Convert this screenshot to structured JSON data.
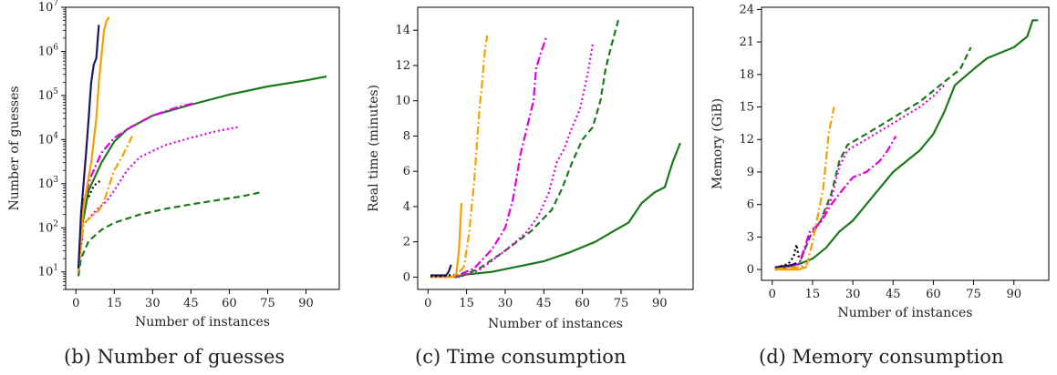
{
  "chart_data": [
    {
      "type": "line",
      "caption": "(b) Number of guesses",
      "xlabel": "Number of instances",
      "ylabel": "Number of guesses",
      "yscale": "log",
      "xlim": [
        -4,
        103
      ],
      "ylim": [
        4,
        10000000
      ],
      "xticks": [
        0,
        15,
        30,
        45,
        60,
        75,
        90
      ],
      "yticks": [
        {
          "value": 10,
          "base": "10",
          "exp": "1"
        },
        {
          "value": 100,
          "base": "10",
          "exp": "2"
        },
        {
          "value": 1000,
          "base": "10",
          "exp": "3"
        },
        {
          "value": 10000,
          "base": "10",
          "exp": "4"
        },
        {
          "value": 100000,
          "base": "10",
          "exp": "5"
        },
        {
          "value": 1000000,
          "base": "10",
          "exp": "6"
        },
        {
          "value": 10000000,
          "base": "10",
          "exp": "7"
        }
      ],
      "series": [
        {
          "color": "#1a7a1a",
          "dash": "solid",
          "points": [
            [
              1,
              10
            ],
            [
              2,
              80
            ],
            [
              5,
              700
            ],
            [
              10,
              3000
            ],
            [
              15,
              9000
            ],
            [
              20,
              17000
            ],
            [
              30,
              35000
            ],
            [
              45,
              62000
            ],
            [
              60,
              105000
            ],
            [
              75,
              160000
            ],
            [
              90,
              220000
            ],
            [
              98,
              270000
            ]
          ]
        },
        {
          "color": "#1a7a1a",
          "dash": "dashed",
          "points": [
            [
              1,
              8
            ],
            [
              2,
              20
            ],
            [
              5,
              50
            ],
            [
              10,
              90
            ],
            [
              15,
              130
            ],
            [
              25,
              200
            ],
            [
              35,
              270
            ],
            [
              45,
              340
            ],
            [
              55,
              420
            ],
            [
              65,
              520
            ],
            [
              73,
              650
            ]
          ]
        },
        {
          "color": "#e000e0",
          "dash": "dotted",
          "points": [
            [
              1,
              10
            ],
            [
              3,
              120
            ],
            [
              8,
              250
            ],
            [
              12,
              400
            ],
            [
              15,
              700
            ],
            [
              20,
              2000
            ],
            [
              25,
              4000
            ],
            [
              35,
              7500
            ],
            [
              45,
              11000
            ],
            [
              55,
              15500
            ],
            [
              64,
              19500
            ]
          ]
        },
        {
          "color": "#e000e0",
          "dash": "dashdot",
          "points": [
            [
              1,
              12
            ],
            [
              3,
              400
            ],
            [
              6,
              1500
            ],
            [
              10,
              5000
            ],
            [
              15,
              11000
            ],
            [
              22,
              20000
            ],
            [
              30,
              35000
            ],
            [
              40,
              55000
            ],
            [
              46,
              66000
            ]
          ]
        },
        {
          "color": "#f5a000",
          "dash": "dashdot",
          "points": [
            [
              1,
              12
            ],
            [
              3,
              120
            ],
            [
              6,
              180
            ],
            [
              9,
              250
            ],
            [
              11,
              400
            ],
            [
              13,
              900
            ],
            [
              15,
              2000
            ],
            [
              18,
              4000
            ],
            [
              21,
              9000
            ],
            [
              22,
              12000
            ]
          ]
        },
        {
          "color": "#f5a000",
          "dash": "solid",
          "points": [
            [
              1,
              10
            ],
            [
              3,
              300
            ],
            [
              6,
              3000
            ],
            [
              8,
              30000
            ],
            [
              9,
              200000
            ],
            [
              10,
              800000
            ],
            [
              11,
              3000000
            ],
            [
              12,
              5000000
            ],
            [
              13,
              6000000
            ]
          ]
        },
        {
          "color": "#1a1a5e",
          "dash": "solid",
          "points": [
            [
              1,
              12
            ],
            [
              2,
              200
            ],
            [
              3,
              1000
            ],
            [
              4,
              5000
            ],
            [
              5,
              30000
            ],
            [
              6,
              200000
            ],
            [
              7,
              500000
            ],
            [
              8,
              700000
            ],
            [
              9,
              4000000
            ]
          ]
        },
        {
          "color": "#000000",
          "dash": "dotted",
          "points": [
            [
              5,
              500
            ],
            [
              7,
              900
            ],
            [
              9,
              1100
            ],
            [
              10,
              1200
            ]
          ]
        }
      ]
    },
    {
      "type": "line",
      "caption": "(c) Time consumption",
      "xlabel": "Number of instances",
      "ylabel": "Real time (minutes)",
      "xlim": [
        -4,
        103
      ],
      "ylim": [
        -0.7,
        15.3
      ],
      "xticks": [
        0,
        15,
        30,
        45,
        60,
        75,
        90
      ],
      "yticks": [
        0,
        2,
        4,
        6,
        8,
        10,
        12,
        14
      ],
      "series": [
        {
          "color": "#1a7a1a",
          "dash": "solid",
          "points": [
            [
              1,
              0
            ],
            [
              10,
              0
            ],
            [
              15,
              0.15
            ],
            [
              25,
              0.3
            ],
            [
              35,
              0.6
            ],
            [
              45,
              0.9
            ],
            [
              55,
              1.4
            ],
            [
              65,
              2.0
            ],
            [
              72,
              2.6
            ],
            [
              78,
              3.1
            ],
            [
              83,
              4.2
            ],
            [
              88,
              4.8
            ],
            [
              92,
              5.1
            ],
            [
              95,
              6.5
            ],
            [
              98,
              7.6
            ]
          ]
        },
        {
          "color": "#1a7a1a",
          "dash": "dashed",
          "points": [
            [
              1,
              0
            ],
            [
              12,
              0
            ],
            [
              20,
              0.5
            ],
            [
              30,
              1.5
            ],
            [
              40,
              2.6
            ],
            [
              48,
              3.8
            ],
            [
              52,
              5.0
            ],
            [
              56,
              6.5
            ],
            [
              60,
              7.8
            ],
            [
              64,
              8.5
            ],
            [
              67,
              10.0
            ],
            [
              69,
              11.8
            ],
            [
              71,
              13.0
            ],
            [
              74,
              14.6
            ]
          ]
        },
        {
          "color": "#e000e0",
          "dash": "dotted",
          "points": [
            [
              1,
              0
            ],
            [
              12,
              0
            ],
            [
              20,
              0.4
            ],
            [
              30,
              1.5
            ],
            [
              38,
              2.5
            ],
            [
              43,
              3.5
            ],
            [
              47,
              4.8
            ],
            [
              50,
              6.5
            ],
            [
              53,
              7.3
            ],
            [
              56,
              8.5
            ],
            [
              59,
              9.5
            ],
            [
              62,
              11.5
            ],
            [
              64,
              13.2
            ]
          ]
        },
        {
          "color": "#e000e0",
          "dash": "dashdot",
          "points": [
            [
              1,
              0
            ],
            [
              10,
              0
            ],
            [
              18,
              0.5
            ],
            [
              25,
              1.6
            ],
            [
              30,
              2.8
            ],
            [
              33,
              4.4
            ],
            [
              36,
              7.0
            ],
            [
              39,
              8.8
            ],
            [
              41,
              10.0
            ],
            [
              42,
              11.8
            ],
            [
              44,
              12.8
            ],
            [
              46,
              13.6
            ]
          ]
        },
        {
          "color": "#f5a000",
          "dash": "dashdot",
          "points": [
            [
              1,
              0
            ],
            [
              8,
              0
            ],
            [
              11,
              0.1
            ],
            [
              14,
              0.6
            ],
            [
              16,
              2.5
            ],
            [
              18,
              5.5
            ],
            [
              19,
              7.5
            ],
            [
              20,
              9.5
            ],
            [
              21,
              11.0
            ],
            [
              22,
              12.7
            ],
            [
              23,
              13.7
            ]
          ]
        },
        {
          "color": "#f5a000",
          "dash": "solid",
          "points": [
            [
              1,
              0
            ],
            [
              10,
              0
            ],
            [
              11,
              0.2
            ],
            [
              12,
              1.5
            ],
            [
              13,
              4.2
            ]
          ]
        },
        {
          "color": "#1a1a5e",
          "dash": "solid",
          "points": [
            [
              1,
              0.1
            ],
            [
              7,
              0.1
            ],
            [
              8,
              0.3
            ],
            [
              9,
              0.7
            ]
          ]
        },
        {
          "color": "#000000",
          "dash": "dotted",
          "points": [
            [
              1,
              0.05
            ],
            [
              6,
              0.05
            ],
            [
              8,
              0.1
            ],
            [
              10,
              0.15
            ]
          ]
        }
      ]
    },
    {
      "type": "line",
      "caption": "(d) Memory consumption",
      "xlabel": "Number of instances",
      "ylabel": "Memory (GiB)",
      "xlim": [
        -4,
        103
      ],
      "ylim": [
        -1.0,
        24.2
      ],
      "xticks": [
        0,
        15,
        30,
        45,
        60,
        75,
        90
      ],
      "yticks": [
        0,
        3,
        6,
        9,
        12,
        15,
        18,
        21,
        24
      ],
      "series": [
        {
          "color": "#1a7a1a",
          "dash": "solid",
          "points": [
            [
              1,
              0
            ],
            [
              10,
              0.5
            ],
            [
              15,
              1.0
            ],
            [
              20,
              2.0
            ],
            [
              25,
              3.5
            ],
            [
              30,
              4.5
            ],
            [
              35,
              6.0
            ],
            [
              40,
              7.5
            ],
            [
              45,
              9.0
            ],
            [
              50,
              10.0
            ],
            [
              55,
              11.0
            ],
            [
              60,
              12.5
            ],
            [
              64,
              14.5
            ],
            [
              68,
              17.0
            ],
            [
              75,
              18.5
            ],
            [
              80,
              19.5
            ],
            [
              85,
              20.0
            ],
            [
              90,
              20.5
            ],
            [
              95,
              21.5
            ],
            [
              97,
              23.0
            ],
            [
              99,
              23.0
            ]
          ]
        },
        {
          "color": "#1a7a1a",
          "dash": "dashed",
          "points": [
            [
              1,
              0
            ],
            [
              10,
              0.5
            ],
            [
              14,
              3.0
            ],
            [
              18,
              4.5
            ],
            [
              22,
              7.0
            ],
            [
              25,
              10.0
            ],
            [
              28,
              11.5
            ],
            [
              35,
              12.5
            ],
            [
              45,
              14.0
            ],
            [
              55,
              15.5
            ],
            [
              65,
              17.5
            ],
            [
              70,
              18.5
            ],
            [
              74,
              20.5
            ]
          ]
        },
        {
          "color": "#e000e0",
          "dash": "dotted",
          "points": [
            [
              1,
              0
            ],
            [
              10,
              0.5
            ],
            [
              14,
              3.0
            ],
            [
              18,
              4.5
            ],
            [
              22,
              6.5
            ],
            [
              25,
              9.5
            ],
            [
              28,
              11.0
            ],
            [
              35,
              12.0
            ],
            [
              45,
              13.5
            ],
            [
              55,
              15.0
            ],
            [
              60,
              16.0
            ],
            [
              64,
              17.0
            ]
          ]
        },
        {
          "color": "#e000e0",
          "dash": "dashdot",
          "points": [
            [
              1,
              0.2
            ],
            [
              10,
              0.5
            ],
            [
              14,
              3.5
            ],
            [
              18,
              4.3
            ],
            [
              22,
              6.0
            ],
            [
              26,
              7.3
            ],
            [
              30,
              8.5
            ],
            [
              35,
              9.0
            ],
            [
              40,
              10.0
            ],
            [
              43,
              11.0
            ],
            [
              46,
              12.3
            ]
          ]
        },
        {
          "color": "#f5a000",
          "dash": "dashdot",
          "points": [
            [
              1,
              0.1
            ],
            [
              10,
              0.2
            ],
            [
              13,
              0.5
            ],
            [
              15,
              2.5
            ],
            [
              17,
              5.0
            ],
            [
              19,
              7.5
            ],
            [
              20,
              10.0
            ],
            [
              21,
              12.5
            ],
            [
              23,
              15.0
            ]
          ]
        },
        {
          "color": "#f5a000",
          "dash": "solid",
          "points": [
            [
              1,
              0
            ],
            [
              10,
              0
            ],
            [
              12,
              0.2
            ],
            [
              13,
              0.2
            ]
          ]
        },
        {
          "color": "#1a1a5e",
          "dash": "solid",
          "points": [
            [
              1,
              0.2
            ],
            [
              7,
              0.4
            ],
            [
              9,
              0.6
            ]
          ]
        },
        {
          "color": "#000000",
          "dash": "dotted",
          "points": [
            [
              3,
              0.3
            ],
            [
              6,
              0.5
            ],
            [
              8,
              1.2
            ],
            [
              9,
              2.3
            ],
            [
              10,
              1.0
            ]
          ]
        }
      ]
    }
  ]
}
